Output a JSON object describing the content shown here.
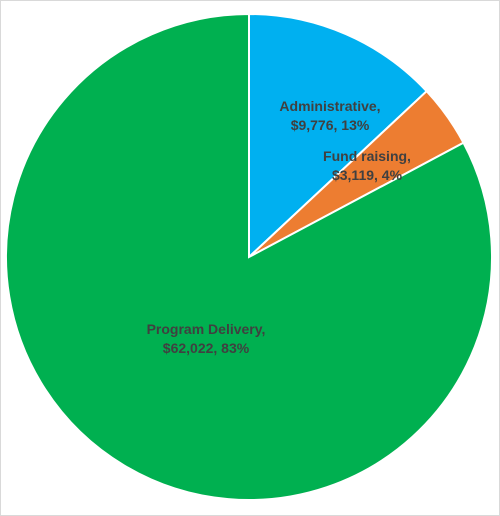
{
  "chart_data": {
    "type": "pie",
    "title": "",
    "slices": [
      {
        "name": "Administrative",
        "value": 9776,
        "value_label": "$9,776",
        "percent_label": "13%",
        "color": "#00B0F0"
      },
      {
        "name": "Fund raising",
        "value": 3119,
        "value_label": "$3,119",
        "percent_label": "4%",
        "color": "#ED7D31"
      },
      {
        "name": "Program Delivery",
        "value": 62022,
        "value_label": "$62,022",
        "percent_label": "83%",
        "color": "#00B050"
      }
    ],
    "start_angle_deg": 0,
    "direction": "clockwise",
    "slice_border_color": "#ffffff",
    "label_color": "#404040",
    "legend": "none"
  }
}
